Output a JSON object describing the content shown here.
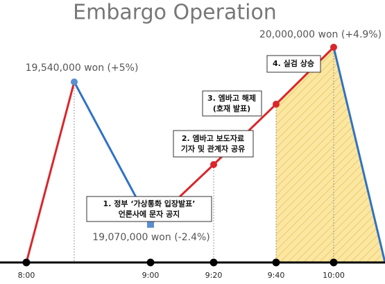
{
  "title": "Embargo Operation",
  "times": [
    "8:00",
    "9:00",
    "9:20",
    "9:40",
    "10:00"
  ],
  "prices": [
    "19,540,000 won (+5%)",
    "19,070,000 won (-2.4%)",
    "20,000,000 won (+4.9%)"
  ],
  "steps": [
    [
      "1. 정부 ‘가상통화 입장발표’",
      "언론사에 문자 공지"
    ],
    [
      "2. 엠바고 보도자료",
      "기자 및 관계자 공유"
    ],
    [
      "3. 엠바고 해제",
      "(호재 발표)"
    ],
    [
      "4. 실검 상승"
    ]
  ]
}
